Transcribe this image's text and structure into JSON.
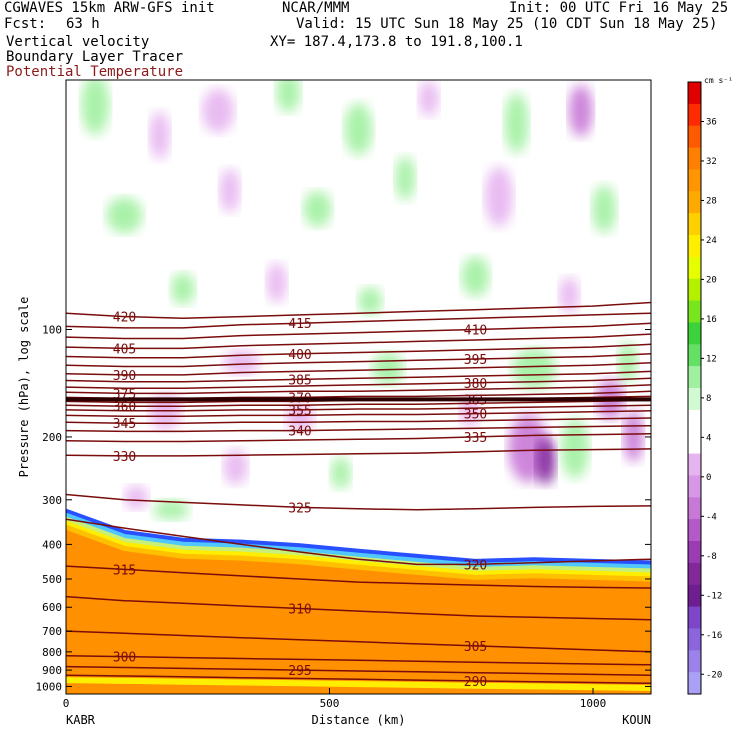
{
  "header": {
    "title_left": "CGWAVES 15km ARW-GFS init",
    "fcst_label": "Fcst:",
    "fcst_value": "63 h",
    "center": "NCAR/MMM",
    "init": "Init: 00 UTC Fri 16 May 25",
    "valid": "Valid: 15 UTC Sun 18 May 25 (10 CDT Sun 18 May 25)",
    "xy": "XY= 187.4,173.8 to 191.8,100.1",
    "field1": "Vertical velocity",
    "field2": "Boundary Layer Tracer",
    "field3": "Potential Temperature",
    "field3_color": "#8b1a1a"
  },
  "chart_data": {
    "type": "heatmap",
    "title": "Vertical velocity",
    "xlabel": "Distance (km)",
    "ylabel": "Pressure (hPa), log scale",
    "x_ticks": [
      "0",
      "500",
      "1000"
    ],
    "x_tick_values": [
      0,
      500,
      1000
    ],
    "xlim": [
      0,
      1110
    ],
    "x_endpoints": [
      "KABR",
      "KOUN"
    ],
    "y_ticks": [
      "100",
      "200",
      "300",
      "400",
      "500",
      "600",
      "700",
      "800",
      "900",
      "1000"
    ],
    "y_tick_values": [
      100,
      200,
      300,
      400,
      500,
      600,
      700,
      800,
      900,
      1000
    ],
    "ylim": [
      1050,
      20
    ],
    "y_scale": "log",
    "colorbar": {
      "unit": "cm s⁻¹",
      "tick_labels": [
        "36",
        "32",
        "28",
        "24",
        "20",
        "16",
        "12",
        "8",
        "4",
        "0",
        "-4",
        "-8",
        "-12",
        "-16",
        "-20"
      ],
      "tick_values": [
        36,
        32,
        28,
        24,
        20,
        16,
        12,
        8,
        4,
        0,
        -4,
        -8,
        -12,
        -16,
        -20
      ],
      "colors": [
        "#e00000",
        "#ff2a00",
        "#ff5a00",
        "#ff8000",
        "#ff9500",
        "#ffaa00",
        "#ffd000",
        "#ffee00",
        "#e6ff00",
        "#b4f000",
        "#78e61e",
        "#3cd23c",
        "#64e164",
        "#a0f0a0",
        "#d2fad2",
        "#ffffff",
        "#ffffff",
        "#e6b4f0",
        "#d796e6",
        "#c878d7",
        "#b45ac8",
        "#9b3cb4",
        "#82289b",
        "#6e1e91",
        "#7d46c8",
        "#8c64dc",
        "#9b82eb",
        "#aaa0f5"
      ]
    },
    "theta_contours": [
      {
        "label": "420",
        "p": [
          90,
          92,
          93,
          92,
          91,
          90,
          89,
          88,
          87,
          86,
          84
        ]
      },
      {
        "label": "415",
        "p": [
          98,
          99,
          99,
          97,
          96,
          95,
          94,
          93,
          92,
          91,
          90
        ]
      },
      {
        "label": "410",
        "p": [
          105,
          106,
          106,
          104,
          103,
          102,
          101,
          100,
          99,
          98,
          96
        ]
      },
      {
        "label": "405",
        "p": [
          112,
          113,
          113,
          111,
          110,
          109,
          108,
          107,
          106,
          105,
          103
        ]
      },
      {
        "label": "400",
        "p": [
          119,
          120,
          120,
          118,
          117,
          116,
          115,
          114,
          113,
          112,
          110
        ]
      },
      {
        "label": "395",
        "p": [
          126,
          127,
          127,
          125,
          124,
          123,
          122,
          121,
          120,
          119,
          117
        ]
      },
      {
        "label": "390",
        "p": [
          133,
          134,
          134,
          132,
          131,
          130,
          129,
          128,
          127,
          126,
          124
        ]
      },
      {
        "label": "385",
        "p": [
          139,
          140,
          140,
          139,
          138,
          137,
          136,
          135,
          134,
          133,
          131
        ]
      },
      {
        "label": "380",
        "p": [
          145,
          146,
          146,
          145,
          144,
          143,
          142,
          141,
          140,
          139,
          137
        ]
      },
      {
        "label": "375",
        "p": [
          150,
          151,
          151,
          150,
          149,
          149,
          148,
          147,
          146,
          145,
          143
        ]
      },
      {
        "label": "370",
        "p": [
          155,
          156,
          156,
          155,
          155,
          154,
          154,
          153,
          152,
          151,
          149
        ]
      },
      {
        "label": "365",
        "p": [
          159,
          160,
          160,
          159,
          159,
          158,
          158,
          157,
          156,
          155,
          154
        ]
      },
      {
        "label": "360",
        "p": [
          163,
          164,
          164,
          163,
          163,
          162,
          162,
          161,
          160,
          159,
          158
        ]
      },
      {
        "label": "355",
        "p": [
          168,
          169,
          169,
          168,
          168,
          167,
          167,
          166,
          165,
          164,
          163
        ]
      },
      {
        "label": "350",
        "p": [
          174,
          175,
          175,
          174,
          174,
          173,
          173,
          172,
          171,
          170,
          169
        ]
      },
      {
        "label": "345",
        "p": [
          182,
          183,
          183,
          182,
          182,
          181,
          181,
          180,
          179,
          178,
          177
        ]
      },
      {
        "label": "340",
        "p": [
          192,
          193,
          193,
          192,
          192,
          191,
          190,
          189,
          188,
          187,
          186
        ]
      },
      {
        "label": "335",
        "p": [
          205,
          206,
          206,
          205,
          204,
          203,
          202,
          200,
          198,
          197,
          196
        ]
      },
      {
        "label": "330",
        "p": [
          225,
          226,
          226,
          225,
          224,
          223,
          222,
          220,
          218,
          217,
          216
        ]
      },
      {
        "label": "325",
        "p": [
          290,
          300,
          305,
          310,
          315,
          318,
          320,
          318,
          315,
          313,
          312
        ]
      },
      {
        "label": "320",
        "p": [
          340,
          360,
          380,
          400,
          420,
          440,
          455,
          455,
          450,
          445,
          440
        ]
      },
      {
        "label": "315",
        "p": [
          460,
          470,
          480,
          490,
          500,
          510,
          515,
          520,
          525,
          528,
          530
        ]
      },
      {
        "label": "310",
        "p": [
          560,
          575,
          585,
          595,
          605,
          615,
          625,
          635,
          640,
          645,
          650
        ]
      },
      {
        "label": "305",
        "p": [
          700,
          710,
          720,
          730,
          740,
          750,
          760,
          770,
          780,
          790,
          800
        ]
      },
      {
        "label": "300",
        "p": [
          820,
          825,
          830,
          835,
          840,
          845,
          850,
          855,
          860,
          865,
          870
        ]
      },
      {
        "label": "295",
        "p": [
          880,
          885,
          890,
          895,
          900,
          905,
          910,
          915,
          920,
          925,
          930
        ]
      },
      {
        "label": "290",
        "p": [
          930,
          935,
          940,
          945,
          950,
          955,
          960,
          965,
          970,
          975,
          980
        ]
      }
    ],
    "boundary_layer_top_hpa": [
      340,
      390,
      410,
      415,
      425,
      440,
      455,
      470,
      465,
      470,
      475
    ],
    "surface_hpa": [
      960,
      965,
      970,
      975,
      980,
      985,
      990,
      995,
      1000,
      1005,
      1010
    ]
  }
}
